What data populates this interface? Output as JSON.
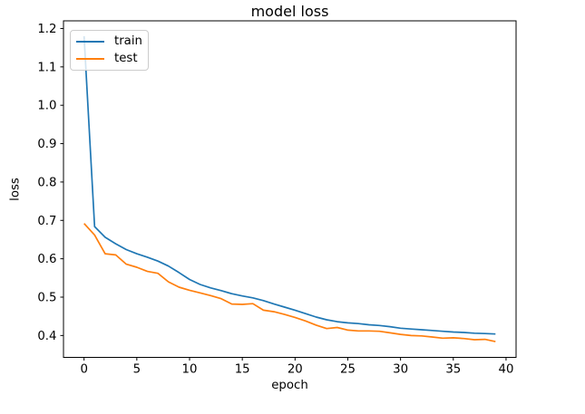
{
  "chart_data": {
    "type": "line",
    "title": "model loss",
    "xlabel": "epoch",
    "ylabel": "loss",
    "x": [
      0,
      1,
      2,
      3,
      4,
      5,
      6,
      7,
      8,
      9,
      10,
      11,
      12,
      13,
      14,
      15,
      16,
      17,
      18,
      19,
      20,
      21,
      22,
      23,
      24,
      25,
      26,
      27,
      28,
      29,
      30,
      31,
      32,
      33,
      34,
      35,
      36,
      37,
      38,
      39
    ],
    "series": [
      {
        "name": "train",
        "color": "#1f77b4",
        "values": [
          1.18,
          0.684,
          0.656,
          0.639,
          0.624,
          0.613,
          0.604,
          0.594,
          0.581,
          0.564,
          0.546,
          0.533,
          0.524,
          0.517,
          0.509,
          0.503,
          0.498,
          0.491,
          0.482,
          0.474,
          0.466,
          0.457,
          0.448,
          0.441,
          0.436,
          0.433,
          0.431,
          0.428,
          0.426,
          0.423,
          0.419,
          0.417,
          0.415,
          0.413,
          0.411,
          0.409,
          0.408,
          0.406,
          0.405,
          0.404
        ]
      },
      {
        "name": "test",
        "color": "#ff7f0e",
        "values": [
          0.692,
          0.662,
          0.613,
          0.61,
          0.586,
          0.578,
          0.567,
          0.562,
          0.54,
          0.526,
          0.518,
          0.511,
          0.504,
          0.496,
          0.482,
          0.481,
          0.483,
          0.466,
          0.462,
          0.455,
          0.447,
          0.438,
          0.427,
          0.418,
          0.421,
          0.414,
          0.412,
          0.412,
          0.411,
          0.407,
          0.403,
          0.4,
          0.399,
          0.396,
          0.393,
          0.394,
          0.392,
          0.389,
          0.39,
          0.384
        ]
      }
    ],
    "xlim": [
      -1.95,
      40.95
    ],
    "ylim": [
      0.343,
      1.22
    ],
    "xticks": [
      0,
      5,
      10,
      15,
      20,
      25,
      30,
      35,
      40
    ],
    "yticks": [
      0.4,
      0.5,
      0.6,
      0.7,
      0.8,
      0.9,
      1.0,
      1.1,
      1.2
    ],
    "grid": false,
    "legend": {
      "location": "upper left",
      "entries": [
        "train",
        "test"
      ]
    }
  },
  "style": {
    "spine_color": "#000000",
    "tick_color": "#000000",
    "background": "#ffffff"
  }
}
